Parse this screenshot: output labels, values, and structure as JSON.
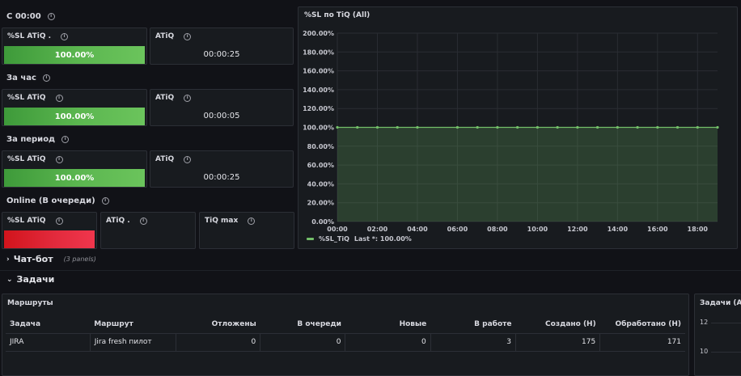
{
  "groups": {
    "since": {
      "title": "С 00:00",
      "sl_title": "%SL ATiQ .",
      "sl_value": "100.00%",
      "atiq_title": "ATiQ",
      "atiq_value": "00:00:25"
    },
    "hour": {
      "title": "За час",
      "sl_title": "%SL ATiQ",
      "sl_value": "100.00%",
      "atiq_title": "ATiQ",
      "atiq_value": "00:00:05"
    },
    "period": {
      "title": "За период",
      "sl_title": "%SL ATiQ",
      "sl_value": "100.00%",
      "atiq_title": "ATiQ",
      "atiq_value": "00:00:25"
    },
    "online": {
      "title": "Online (В очереди)",
      "sl_title": "%SL ATiQ",
      "atiq_title": "ATiQ .",
      "tiq_title": "TiQ max"
    }
  },
  "chart_panel": {
    "title": "%SL по TiQ (All)",
    "legend_label": "%SL_TiQ",
    "legend_last": "Last *: 100.00%"
  },
  "chart_data": {
    "type": "area",
    "title": "%SL по TiQ (All)",
    "xlabel": "",
    "ylabel": "",
    "x_ticks": [
      "00:00",
      "02:00",
      "04:00",
      "06:00",
      "08:00",
      "10:00",
      "12:00",
      "14:00",
      "16:00",
      "18:00"
    ],
    "y_ticks": [
      "0.00%",
      "20.00%",
      "40.00%",
      "60.00%",
      "80.00%",
      "100.00%",
      "120.00%",
      "140.00%",
      "160.00%",
      "180.00%",
      "200.00%"
    ],
    "ylim": [
      0,
      200
    ],
    "xlim_hours": [
      0,
      19
    ],
    "grid": true,
    "legend": "bottom-left",
    "series": [
      {
        "name": "%SL_TiQ",
        "color": "#73bf69",
        "x": [
          0,
          1,
          2,
          3,
          4,
          6,
          7,
          8,
          9,
          10,
          11,
          12,
          13,
          14,
          15,
          16,
          17,
          18,
          19
        ],
        "y": [
          100,
          100,
          100,
          100,
          100,
          100,
          100,
          100,
          100,
          100,
          100,
          100,
          100,
          100,
          100,
          100,
          100,
          100,
          100
        ]
      }
    ]
  },
  "rows": {
    "chatbot": {
      "title": "Чат-бот",
      "sub": "(3 panels)"
    },
    "tasks": {
      "title": "Задачи"
    }
  },
  "routes_panel": {
    "title": "Маршруты",
    "columns": [
      "Задача",
      "Маршрут",
      "Отложены",
      "В очереди",
      "Новые",
      "В работе",
      "Создано (Н)",
      "Обработано (Н)"
    ],
    "rows": [
      [
        "JIRA",
        "Jira fresh пилот",
        "0",
        "0",
        "0",
        "3",
        "175",
        "171"
      ]
    ]
  },
  "tasks_panel": {
    "title": "Задачи (All",
    "y_ticks": [
      "12",
      "10"
    ]
  },
  "colors": {
    "green": "#73bf69",
    "red": "#e22a3c",
    "background": "#111217",
    "panel": "#181b1f"
  },
  "icons": {
    "info": "info-circle-icon",
    "chevron_right": "chevron-right-icon",
    "chevron_down": "chevron-down-icon"
  }
}
